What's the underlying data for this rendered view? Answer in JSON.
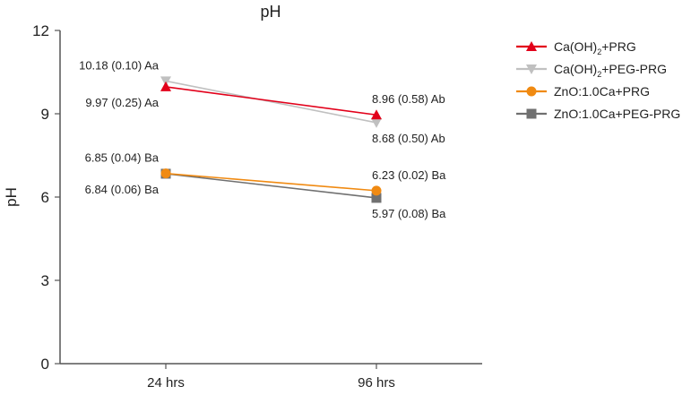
{
  "chart_data": {
    "type": "line",
    "title": "pH",
    "xlabel": "",
    "ylabel": "pH",
    "ylim": [
      0,
      12
    ],
    "yticks": [
      "0",
      "3",
      "6",
      "9",
      "12"
    ],
    "categories": [
      "24 hrs",
      "96 hrs"
    ],
    "legend_position": "top-right",
    "series": [
      {
        "name_main": "Ca(OH)",
        "name_sub": "2",
        "name_tail": "+PRG",
        "color": "#e2001a",
        "marker": "triangle-up",
        "values": [
          9.97,
          8.96
        ],
        "labels": [
          "9.97 (0.25) Aa",
          "8.96 (0.58) Ab"
        ],
        "label_pos": [
          "below",
          "above"
        ]
      },
      {
        "name_main": "Ca(OH)",
        "name_sub": "2",
        "name_tail": "+PEG-PRG",
        "color": "#c0c0c0",
        "marker": "triangle-down",
        "values": [
          10.18,
          8.68
        ],
        "labels": [
          "10.18 (0.10) Aa",
          "8.68 (0.50) Ab"
        ],
        "label_pos": [
          "above",
          "below"
        ]
      },
      {
        "name_main": "ZnO:1.0Ca+PRG",
        "name_sub": "",
        "name_tail": "",
        "color": "#f08a12",
        "marker": "circle",
        "values": [
          6.85,
          6.23
        ],
        "labels": [
          "6.85 (0.04) Ba",
          "6.23 (0.02) Ba"
        ],
        "label_pos": [
          "above",
          "above"
        ]
      },
      {
        "name_main": "ZnO:1.0Ca+PEG-PRG",
        "name_sub": "",
        "name_tail": "",
        "color": "#707070",
        "marker": "square",
        "values": [
          6.84,
          5.97
        ],
        "labels": [
          "6.84 (0.06) Ba",
          "5.97 (0.08) Ba"
        ],
        "label_pos": [
          "below",
          "below"
        ]
      }
    ]
  }
}
